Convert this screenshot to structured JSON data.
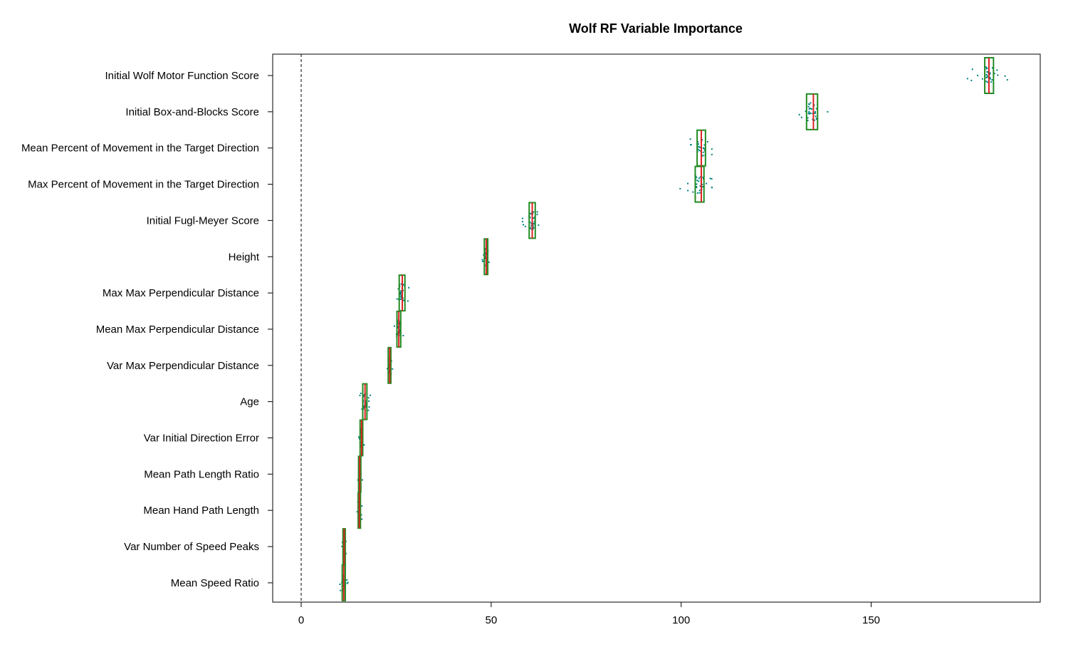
{
  "chart_data": {
    "type": "boxplot",
    "orientation": "horizontal",
    "title": "Wolf RF Variable Importance",
    "xlabel": "",
    "ylabel": "",
    "xlim": [
      -7.5,
      194.5
    ],
    "xticks": [
      0,
      50,
      100,
      150
    ],
    "reference_line": 0,
    "grid": false,
    "colors": {
      "box": "#228B22",
      "median": "#DD2222",
      "points": "#008080",
      "axis": "#000000"
    },
    "categories": [
      "Initial Wolf Motor Function Score",
      "Initial Box-and-Blocks Score",
      "Mean Percent of Movement in the Target Direction",
      "Max Percent of Movement in the Target Direction",
      "Initial Fugl-Meyer Score",
      "Height",
      "Max Max Perpendicular Distance",
      "Mean Max Perpendicular Distance",
      "Var Max Perpendicular Distance",
      "Age",
      "Var Initial Direction Error",
      "Mean Path Length Ratio",
      "Mean Hand Path Length",
      "Var Number of Speed Peaks",
      "Mean Speed Ratio"
    ],
    "boxes": [
      {
        "q1": 179.9,
        "median": 181.0,
        "q3": 182.2,
        "min": 175.0,
        "max": 186.7
      },
      {
        "q1": 133.0,
        "median": 134.8,
        "q3": 135.9,
        "min": 130.8,
        "max": 139.3
      },
      {
        "q1": 104.2,
        "median": 105.3,
        "q3": 106.4,
        "min": 102.3,
        "max": 108.2
      },
      {
        "q1": 103.7,
        "median": 105.3,
        "q3": 106.0,
        "min": 98.8,
        "max": 109.2
      },
      {
        "q1": 60.0,
        "median": 60.8,
        "q3": 61.6,
        "min": 58.2,
        "max": 63.4
      },
      {
        "q1": 48.2,
        "median": 48.7,
        "q3": 49.1,
        "min": 47.5,
        "max": 49.5
      },
      {
        "q1": 25.8,
        "median": 26.6,
        "q3": 27.3,
        "min": 24.8,
        "max": 28.6
      },
      {
        "q1": 25.2,
        "median": 25.7,
        "q3": 26.2,
        "min": 24.5,
        "max": 27.0
      },
      {
        "q1": 22.9,
        "median": 23.3,
        "q3": 23.6,
        "min": 22.5,
        "max": 24.3
      },
      {
        "q1": 16.2,
        "median": 16.8,
        "q3": 17.3,
        "min": 15.4,
        "max": 18.8
      },
      {
        "q1": 15.5,
        "median": 15.9,
        "q3": 16.2,
        "min": 15.1,
        "max": 16.6
      },
      {
        "q1": 15.1,
        "median": 15.4,
        "q3": 15.7,
        "min": 14.7,
        "max": 16.1
      },
      {
        "q1": 15.0,
        "median": 15.3,
        "q3": 15.6,
        "min": 14.6,
        "max": 16.0
      },
      {
        "q1": 11.0,
        "median": 11.3,
        "q3": 11.6,
        "min": 10.7,
        "max": 12.0
      },
      {
        "q1": 10.8,
        "median": 11.2,
        "q3": 11.6,
        "min": 10.2,
        "max": 12.3
      }
    ]
  }
}
